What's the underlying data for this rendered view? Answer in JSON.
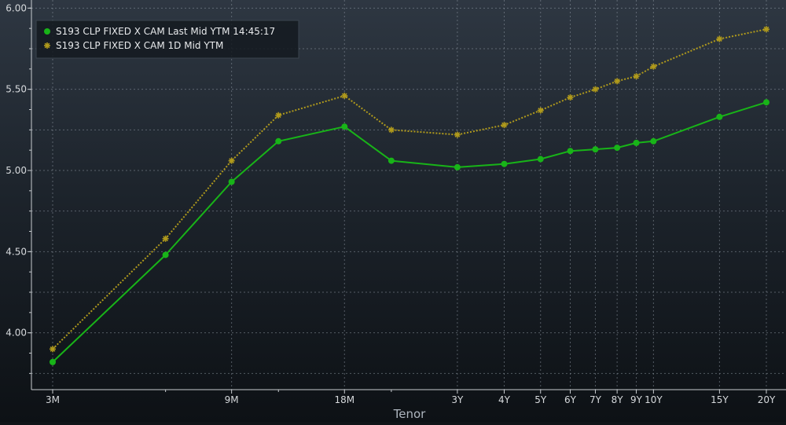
{
  "chart_data": {
    "type": "line",
    "xlabel": "Tenor",
    "ylabel": "",
    "ylim": [
      3.65,
      6.05
    ],
    "y_ticks": [
      4.0,
      4.5,
      5.0,
      5.5,
      6.0
    ],
    "y_tick_labels": [
      "4.00",
      "4.50",
      "5.00",
      "5.50",
      "6.00"
    ],
    "x_tick_labels": [
      "3M",
      "9M",
      "18M",
      "3Y",
      "4Y",
      "5Y",
      "6Y",
      "7Y",
      "8Y",
      "9Y",
      "10Y",
      "15Y",
      "20Y"
    ],
    "grid": true,
    "legend_position": "top-left",
    "x_scale": "log",
    "series": [
      {
        "name": "S193 CLP FIXED X CAM Last Mid YTM 14:45:17",
        "color": "#18b418",
        "marker": "circle",
        "line_style": "solid",
        "points": [
          {
            "tenor_years": 0.25,
            "y": 3.82
          },
          {
            "tenor_years": 0.5,
            "y": 4.48
          },
          {
            "tenor_years": 0.75,
            "y": 4.93
          },
          {
            "tenor_years": 1.0,
            "y": 5.18
          },
          {
            "tenor_years": 1.5,
            "y": 5.27
          },
          {
            "tenor_years": 2.0,
            "y": 5.06
          },
          {
            "tenor_years": 3.0,
            "y": 5.02
          },
          {
            "tenor_years": 4.0,
            "y": 5.04
          },
          {
            "tenor_years": 5.0,
            "y": 5.07
          },
          {
            "tenor_years": 6.0,
            "y": 5.12
          },
          {
            "tenor_years": 7.0,
            "y": 5.13
          },
          {
            "tenor_years": 8.0,
            "y": 5.14
          },
          {
            "tenor_years": 9.0,
            "y": 5.17
          },
          {
            "tenor_years": 10.0,
            "y": 5.18
          },
          {
            "tenor_years": 15.0,
            "y": 5.33
          },
          {
            "tenor_years": 20.0,
            "y": 5.42
          }
        ]
      },
      {
        "name": "S193 CLP FIXED X CAM 1D Mid YTM",
        "color": "#b09a1c",
        "marker": "asterisk",
        "line_style": "dotted",
        "points": [
          {
            "tenor_years": 0.25,
            "y": 3.9
          },
          {
            "tenor_years": 0.5,
            "y": 4.58
          },
          {
            "tenor_years": 0.75,
            "y": 5.06
          },
          {
            "tenor_years": 1.0,
            "y": 5.34
          },
          {
            "tenor_years": 1.5,
            "y": 5.46
          },
          {
            "tenor_years": 2.0,
            "y": 5.25
          },
          {
            "tenor_years": 3.0,
            "y": 5.22
          },
          {
            "tenor_years": 4.0,
            "y": 5.28
          },
          {
            "tenor_years": 5.0,
            "y": 5.37
          },
          {
            "tenor_years": 6.0,
            "y": 5.45
          },
          {
            "tenor_years": 7.0,
            "y": 5.5
          },
          {
            "tenor_years": 8.0,
            "y": 5.55
          },
          {
            "tenor_years": 9.0,
            "y": 5.58
          },
          {
            "tenor_years": 10.0,
            "y": 5.64
          },
          {
            "tenor_years": 15.0,
            "y": 5.81
          },
          {
            "tenor_years": 20.0,
            "y": 5.87
          }
        ]
      }
    ]
  }
}
